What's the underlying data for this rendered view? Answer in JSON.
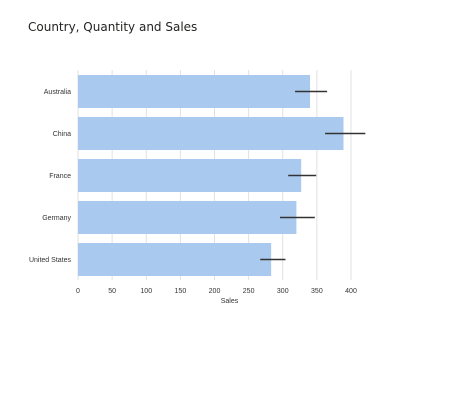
{
  "chart_data": {
    "type": "bar",
    "orientation": "horizontal",
    "title": "Country, Quantity and Sales",
    "xlabel": "Sales",
    "ylabel": "",
    "categories": [
      "Australia",
      "China",
      "France",
      "Germany",
      "United States"
    ],
    "series": [
      {
        "values": [
          340,
          389,
          327,
          320,
          283
        ],
        "error_low": [
          318,
          362,
          308,
          296,
          267
        ],
        "error_high": [
          365,
          421,
          349,
          347,
          304
        ]
      }
    ],
    "xlim": [
      0,
      450
    ],
    "xticks": [
      0,
      50,
      100,
      150,
      200,
      250,
      300,
      350,
      400
    ],
    "grid": true,
    "legend": "none",
    "colors": {
      "bar": "#a9caee",
      "error_bar": "#333333",
      "grid": "#e1e1e1"
    }
  }
}
